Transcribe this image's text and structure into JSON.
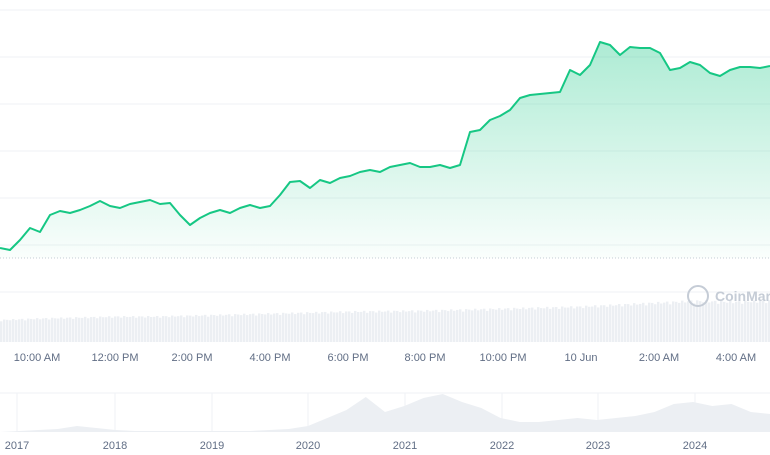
{
  "chart_data": {
    "type": "area",
    "title": "",
    "xlabel": "",
    "ylabel": "",
    "grid": true,
    "ylim": [
      0,
      125
    ],
    "line_color": "#16c784",
    "fill_color": "#16c784",
    "x_tick_labels": [
      "10:00 AM",
      "12:00 PM",
      "2:00 PM",
      "4:00 PM",
      "6:00 PM",
      "8:00 PM",
      "10:00 PM",
      "10 Jun",
      "2:00 AM",
      "4:00 AM"
    ],
    "price_values": [
      5,
      4,
      9,
      15,
      13,
      21.5,
      23.5,
      22.5,
      24,
      26,
      28.5,
      26,
      25,
      27,
      28,
      29,
      27,
      27.5,
      21.5,
      16.5,
      20,
      22.5,
      24,
      22.5,
      25,
      26.5,
      25,
      26,
      31.5,
      38,
      38.5,
      35,
      39,
      37.5,
      40,
      41,
      43,
      44,
      43,
      45.5,
      46.5,
      47.5,
      45.5,
      45.5,
      46.5,
      45,
      46.5,
      63,
      64,
      69,
      71,
      74,
      80,
      81.5,
      82,
      82.5,
      83,
      94,
      91.5,
      96.5,
      108,
      106.5,
      101.5,
      105.5,
      105,
      105,
      102.5,
      94,
      95,
      98,
      96.5,
      92.5,
      91,
      94,
      95.5,
      95.5,
      95,
      96
    ],
    "volume_values": [
      45,
      48,
      50,
      52,
      52,
      54,
      56,
      58,
      60,
      62,
      63,
      64,
      66,
      68,
      70,
      72,
      76,
      80,
      84,
      82,
      84
    ],
    "navigator": {
      "year_labels": [
        "2017",
        "2018",
        "2019",
        "2020",
        "2021",
        "2022",
        "2023",
        "2024"
      ],
      "values": [
        0,
        1,
        2,
        3,
        6,
        4,
        2,
        1,
        1,
        1,
        1,
        1,
        1,
        1,
        2,
        3,
        6,
        14,
        22,
        35,
        20,
        26,
        34,
        38,
        30,
        24,
        14,
        10,
        10,
        12,
        14,
        12,
        14,
        16,
        20,
        28,
        30,
        26,
        28,
        20,
        18
      ]
    },
    "watermark": "CoinMarketCap"
  }
}
